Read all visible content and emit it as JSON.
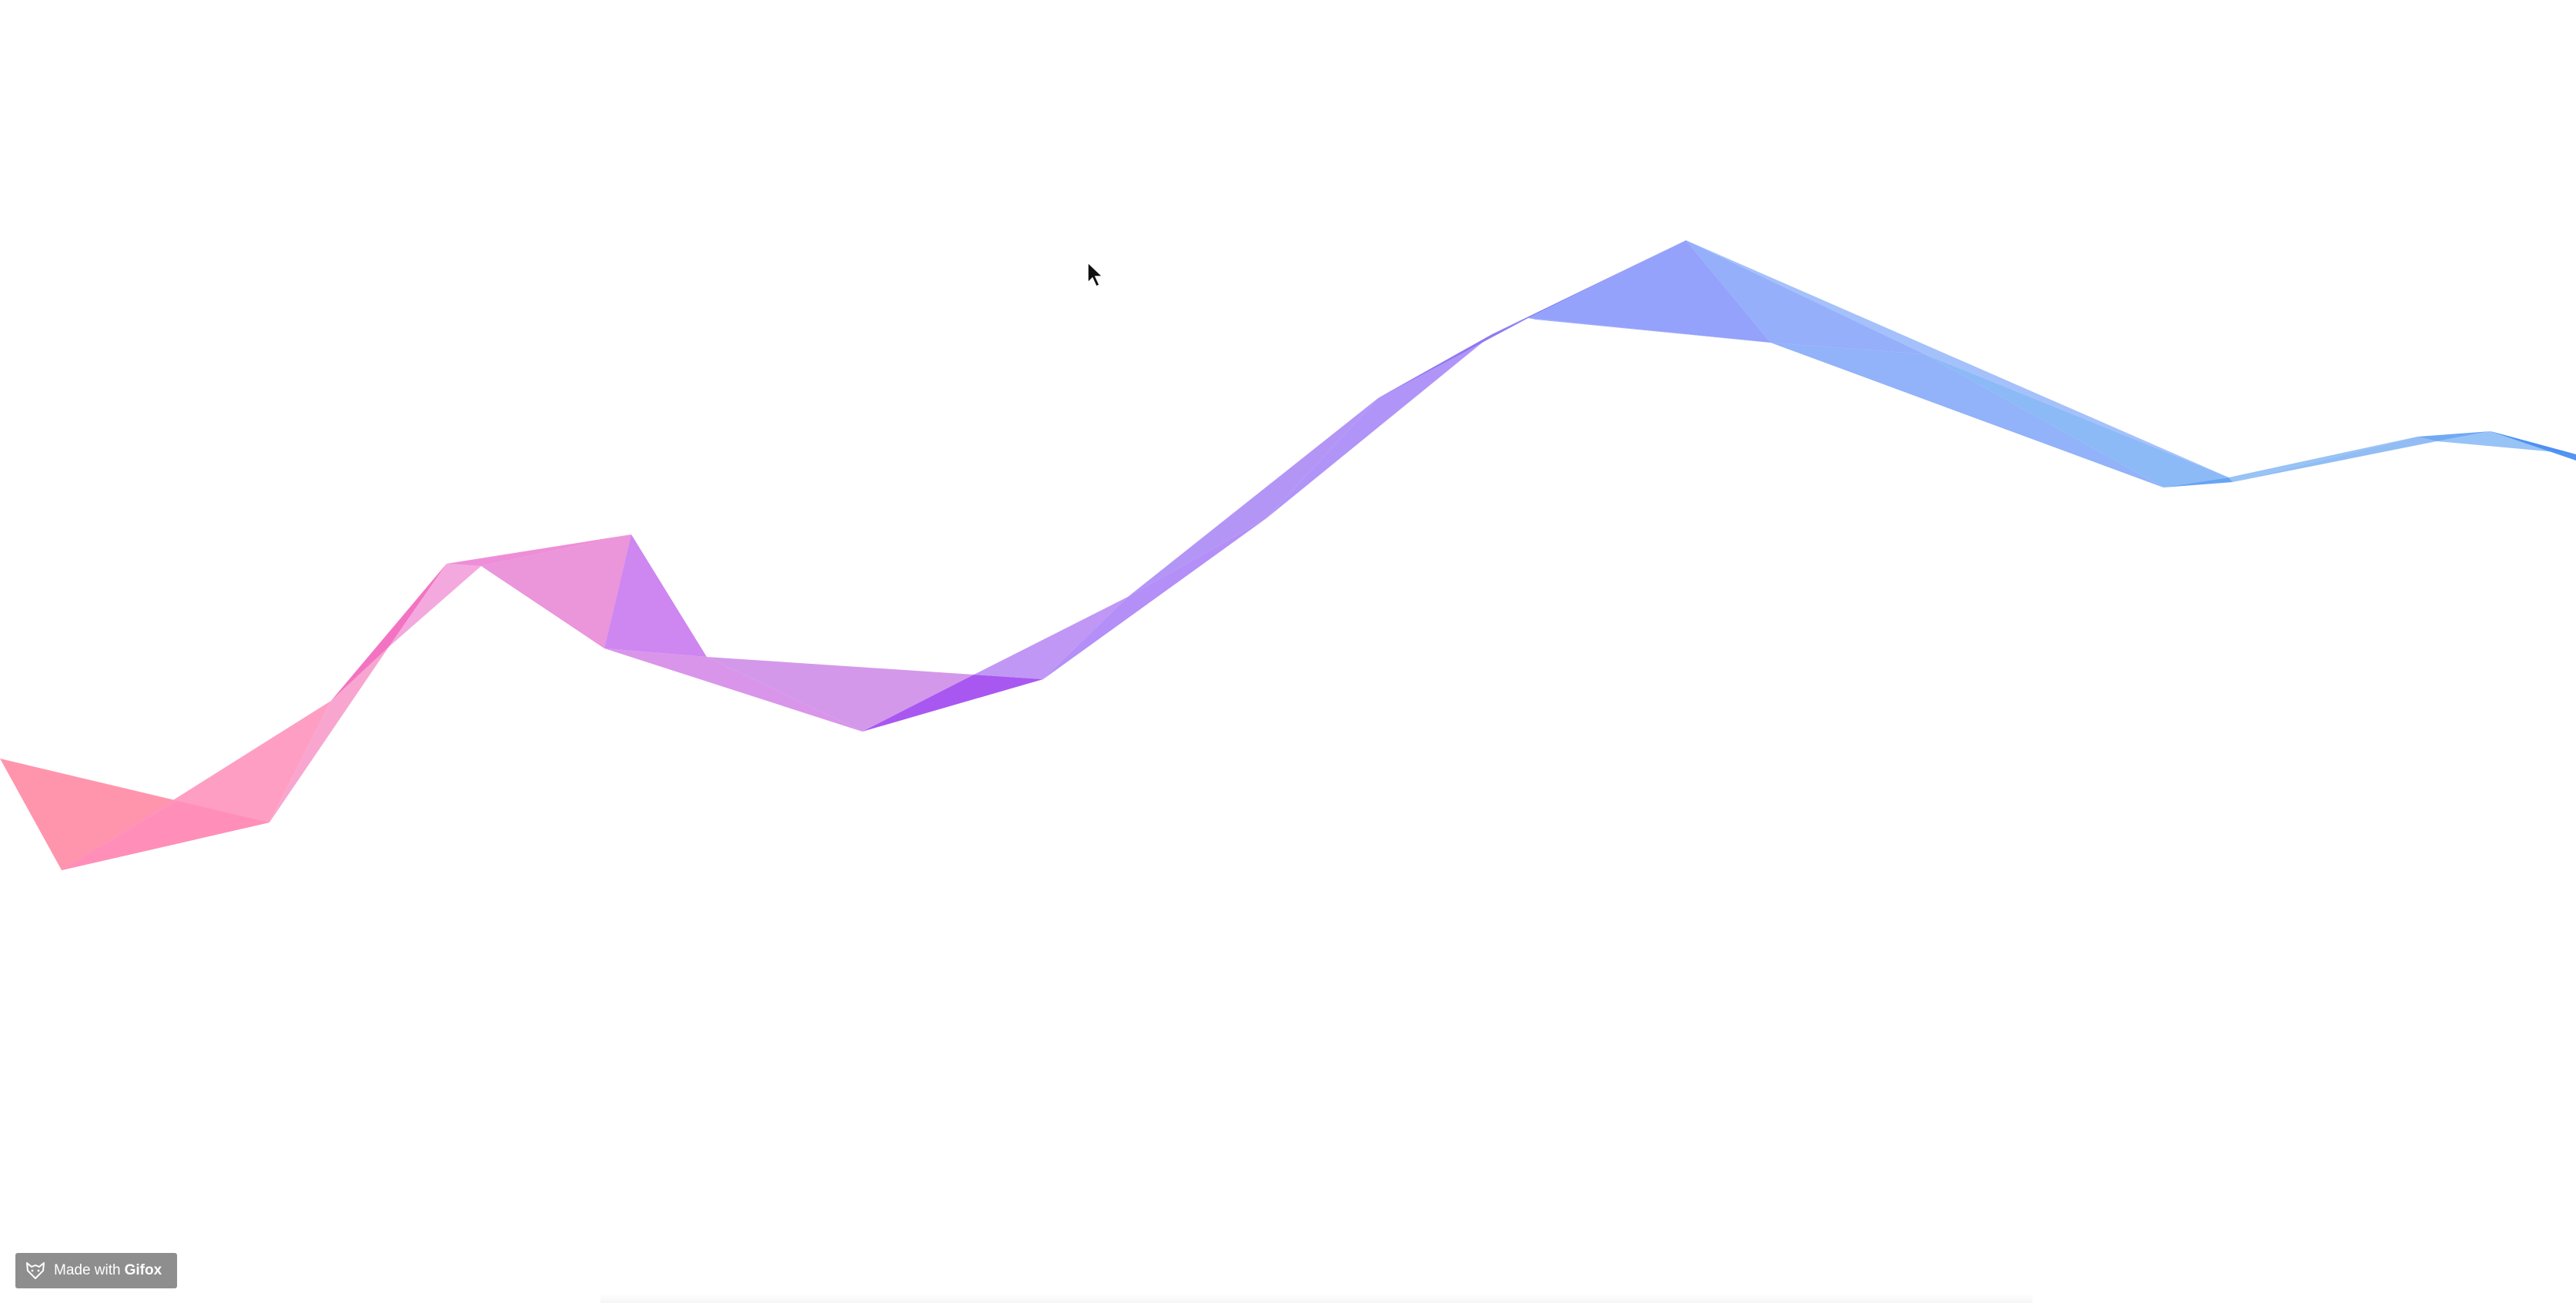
{
  "badge": {
    "prefix": "Made with",
    "brand": "Gifox",
    "icon": "fox-icon"
  },
  "cursor": {
    "icon": "arrow-cursor-icon"
  },
  "ribbon": {
    "colors": [
      "#ff7f9f",
      "#ff5e9a",
      "#e88ad6",
      "#c27bf0",
      "#a35cf2",
      "#9a84f7",
      "#8c9cfb",
      "#7fb0f8",
      "#5f9ef4"
    ]
  }
}
